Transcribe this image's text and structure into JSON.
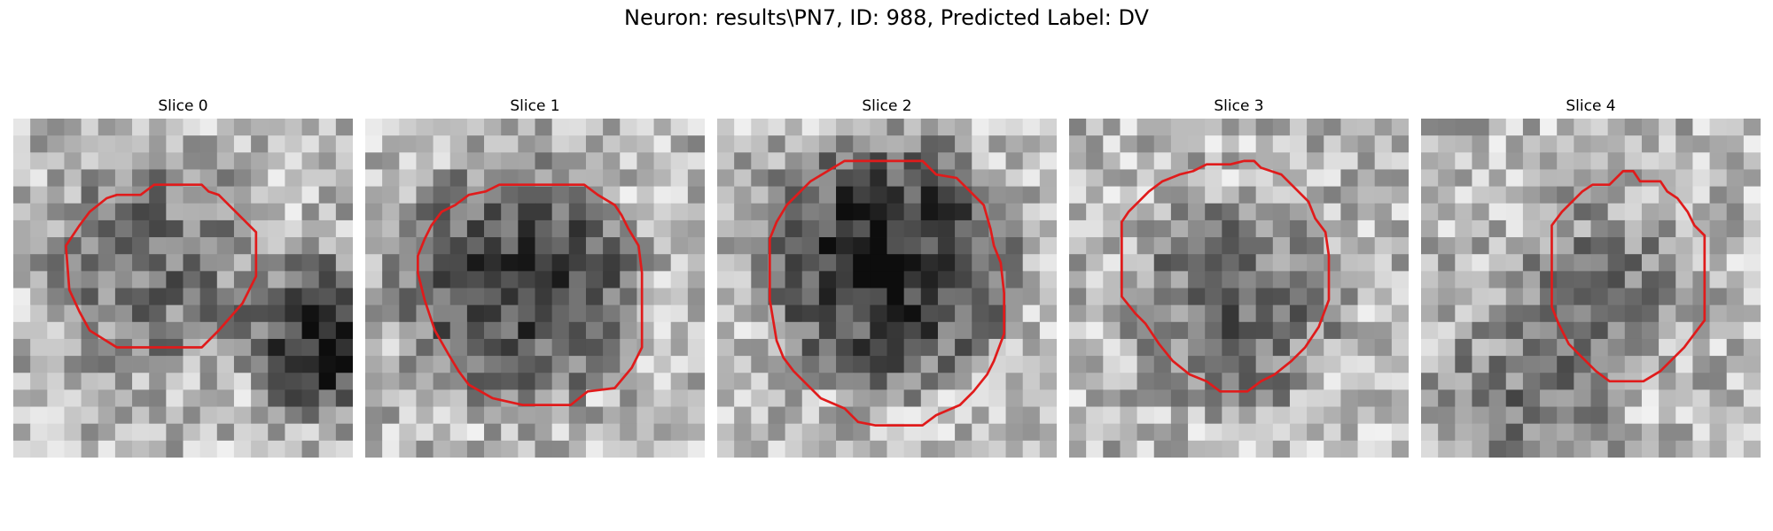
{
  "figure": {
    "title": "Neuron: results\\PN7, ID: 988, Predicted Label: DV"
  },
  "panels": [
    {
      "title": "Slice 0",
      "seed": 11,
      "dark_cx": 0.4,
      "dark_cy": 0.42,
      "dark_r": 0.3,
      "dark_amp": 0.28,
      "blob2_cx": 0.92,
      "blob2_cy": 0.65,
      "blob2_r": 0.22,
      "blob2_amp": 0.6,
      "contour": [
        [
          10.3,
          3.9
        ],
        [
          11.1,
          3.9
        ],
        [
          11.5,
          4.3
        ],
        [
          12.1,
          4.5
        ],
        [
          13.5,
          5.9
        ],
        [
          14.3,
          6.7
        ],
        [
          14.3,
          9.3
        ],
        [
          13.5,
          10.9
        ],
        [
          12.1,
          12.5
        ],
        [
          11.1,
          13.5
        ],
        [
          6.1,
          13.5
        ],
        [
          5.3,
          13.0
        ],
        [
          4.5,
          12.5
        ],
        [
          3.9,
          11.4
        ],
        [
          3.3,
          10.1
        ],
        [
          3.1,
          7.5
        ],
        [
          3.5,
          6.9
        ],
        [
          3.9,
          6.3
        ],
        [
          4.5,
          5.5
        ],
        [
          5.5,
          4.7
        ],
        [
          6.1,
          4.5
        ],
        [
          7.5,
          4.5
        ],
        [
          8.3,
          3.9
        ],
        [
          9.5,
          3.9
        ]
      ]
    },
    {
      "title": "Slice 1",
      "seed": 23,
      "dark_cx": 0.45,
      "dark_cy": 0.48,
      "dark_r": 0.34,
      "dark_amp": 0.45,
      "blob2_cx": 0.0,
      "blob2_cy": 0.0,
      "blob2_r": 0.0,
      "blob2_amp": 0.0,
      "contour": [
        [
          7.9,
          3.9
        ],
        [
          12.9,
          3.9
        ],
        [
          13.7,
          4.5
        ],
        [
          14.7,
          5.1
        ],
        [
          15.1,
          5.7
        ],
        [
          15.5,
          6.5
        ],
        [
          16.1,
          7.5
        ],
        [
          16.3,
          9.1
        ],
        [
          16.3,
          13.5
        ],
        [
          15.7,
          14.7
        ],
        [
          14.7,
          15.9
        ],
        [
          13.1,
          16.1
        ],
        [
          12.1,
          16.9
        ],
        [
          9.3,
          16.9
        ],
        [
          7.5,
          16.5
        ],
        [
          6.1,
          15.7
        ],
        [
          5.5,
          14.9
        ],
        [
          4.9,
          13.9
        ],
        [
          4.1,
          12.5
        ],
        [
          3.5,
          10.7
        ],
        [
          3.1,
          9.1
        ],
        [
          3.1,
          8.1
        ],
        [
          3.5,
          7.1
        ],
        [
          3.9,
          6.3
        ],
        [
          4.5,
          5.5
        ],
        [
          5.3,
          5.1
        ],
        [
          6.1,
          4.5
        ],
        [
          7.1,
          4.3
        ]
      ]
    },
    {
      "title": "Slice 2",
      "seed": 37,
      "dark_cx": 0.5,
      "dark_cy": 0.42,
      "dark_r": 0.35,
      "dark_amp": 0.55,
      "blob2_cx": 0.0,
      "blob2_cy": 0.0,
      "blob2_r": 0.0,
      "blob2_amp": 0.0,
      "contour": [
        [
          7.5,
          2.5
        ],
        [
          12.1,
          2.5
        ],
        [
          12.9,
          3.3
        ],
        [
          14.1,
          3.5
        ],
        [
          14.9,
          4.3
        ],
        [
          15.7,
          5.1
        ],
        [
          16.1,
          6.5
        ],
        [
          16.3,
          7.5
        ],
        [
          16.7,
          8.5
        ],
        [
          16.9,
          10.3
        ],
        [
          16.9,
          12.7
        ],
        [
          16.3,
          14.3
        ],
        [
          15.9,
          15.1
        ],
        [
          15.1,
          16.1
        ],
        [
          14.3,
          16.9
        ],
        [
          12.9,
          17.5
        ],
        [
          12.1,
          18.1
        ],
        [
          9.3,
          18.1
        ],
        [
          8.3,
          17.9
        ],
        [
          7.5,
          17.1
        ],
        [
          6.1,
          16.5
        ],
        [
          5.3,
          15.7
        ],
        [
          4.5,
          14.9
        ],
        [
          3.9,
          14.1
        ],
        [
          3.5,
          13.1
        ],
        [
          3.3,
          11.9
        ],
        [
          3.1,
          10.7
        ],
        [
          3.1,
          7.1
        ],
        [
          3.5,
          6.1
        ],
        [
          4.1,
          5.1
        ],
        [
          4.7,
          4.5
        ],
        [
          5.5,
          3.7
        ],
        [
          6.5,
          3.1
        ]
      ]
    },
    {
      "title": "Slice 3",
      "seed": 53,
      "dark_cx": 0.48,
      "dark_cy": 0.55,
      "dark_r": 0.3,
      "dark_amp": 0.3,
      "blob2_cx": 0.0,
      "blob2_cy": 0.0,
      "blob2_r": 0.0,
      "blob2_amp": 0.0,
      "contour": [
        [
          10.3,
          2.5
        ],
        [
          10.9,
          2.5
        ],
        [
          11.3,
          2.9
        ],
        [
          12.5,
          3.3
        ],
        [
          13.1,
          3.9
        ],
        [
          14.1,
          4.9
        ],
        [
          14.5,
          5.9
        ],
        [
          15.1,
          6.7
        ],
        [
          15.3,
          8.1
        ],
        [
          15.3,
          10.7
        ],
        [
          14.7,
          12.3
        ],
        [
          13.9,
          13.5
        ],
        [
          13.1,
          14.3
        ],
        [
          12.1,
          15.1
        ],
        [
          11.3,
          15.5
        ],
        [
          10.5,
          16.1
        ],
        [
          8.9,
          16.1
        ],
        [
          8.1,
          15.5
        ],
        [
          7.1,
          15.1
        ],
        [
          6.1,
          14.3
        ],
        [
          5.3,
          13.3
        ],
        [
          4.5,
          12.1
        ],
        [
          3.9,
          11.5
        ],
        [
          3.1,
          10.5
        ],
        [
          3.1,
          6.1
        ],
        [
          3.5,
          5.5
        ],
        [
          4.1,
          4.9
        ],
        [
          4.7,
          4.3
        ],
        [
          5.5,
          3.7
        ],
        [
          6.5,
          3.3
        ],
        [
          7.3,
          3.1
        ],
        [
          8.1,
          2.7
        ],
        [
          9.5,
          2.7
        ]
      ]
    },
    {
      "title": "Slice 4",
      "seed": 71,
      "dark_cx": 0.52,
      "dark_cy": 0.5,
      "dark_r": 0.25,
      "dark_amp": 0.22,
      "blob2_cx": 0.3,
      "blob2_cy": 0.85,
      "blob2_r": 0.25,
      "blob2_amp": 0.25,
      "contour": [
        [
          11.9,
          3.1
        ],
        [
          12.5,
          3.1
        ],
        [
          12.9,
          3.7
        ],
        [
          14.1,
          3.7
        ],
        [
          14.5,
          4.3
        ],
        [
          15.1,
          4.7
        ],
        [
          15.7,
          5.5
        ],
        [
          16.1,
          6.3
        ],
        [
          16.7,
          6.9
        ],
        [
          16.7,
          11.9
        ],
        [
          16.1,
          12.7
        ],
        [
          15.5,
          13.5
        ],
        [
          14.7,
          14.3
        ],
        [
          14.1,
          14.9
        ],
        [
          13.1,
          15.5
        ],
        [
          12.9,
          15.5
        ],
        [
          11.1,
          15.5
        ],
        [
          10.3,
          14.9
        ],
        [
          9.5,
          14.1
        ],
        [
          8.7,
          13.3
        ],
        [
          8.1,
          12.1
        ],
        [
          7.7,
          11.1
        ],
        [
          7.7,
          6.3
        ],
        [
          8.3,
          5.5
        ],
        [
          8.9,
          4.9
        ],
        [
          9.5,
          4.3
        ],
        [
          10.1,
          3.9
        ],
        [
          11.1,
          3.9
        ]
      ]
    }
  ],
  "colors": {
    "contour": "#e01b1b",
    "text": "#000000"
  }
}
